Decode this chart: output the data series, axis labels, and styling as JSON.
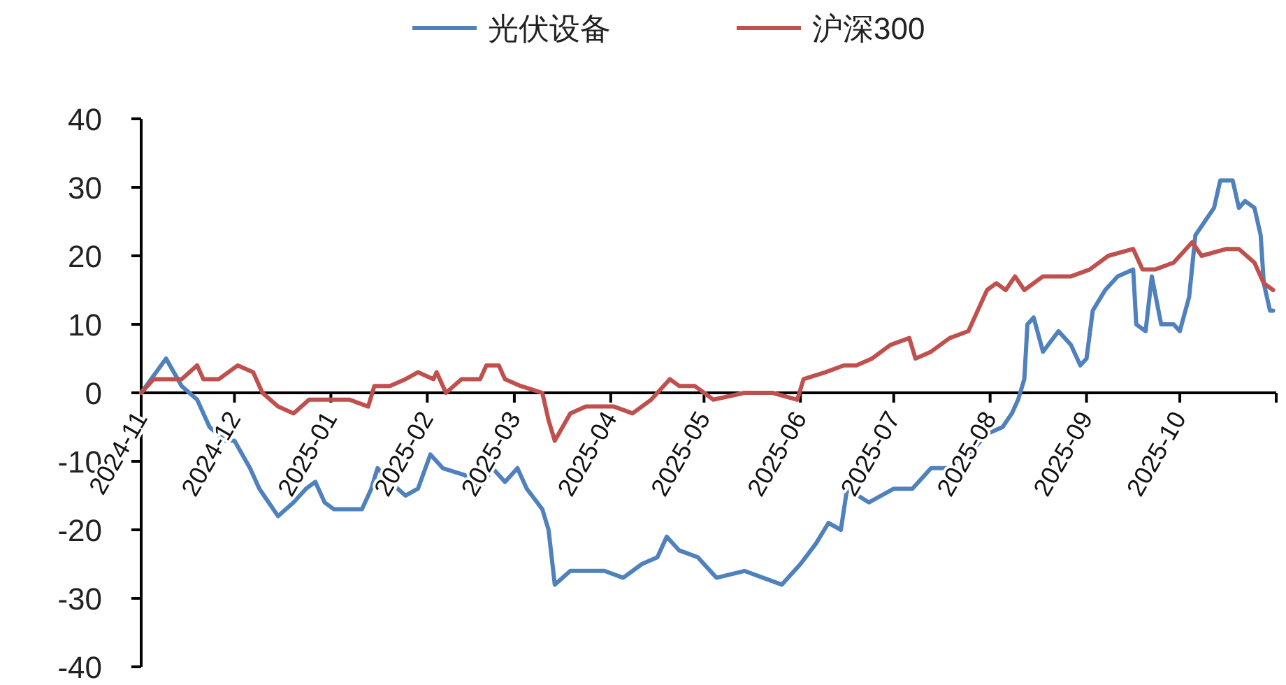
{
  "chart_data": {
    "type": "line",
    "legend": "top",
    "xlim": [
      "2024-11-01",
      "2025-11-01"
    ],
    "ylim": [
      -40,
      40
    ],
    "xticks": [
      "2024-11",
      "2024-12",
      "2025-01",
      "2025-02",
      "2025-03",
      "2025-04",
      "2025-05",
      "2025-06",
      "2025-07",
      "2025-08",
      "2025-09",
      "2025-10",
      {
        "value": "2025-11",
        "label": null
      }
    ],
    "yticks": [
      -40,
      -30,
      -20,
      -10,
      0,
      10,
      20,
      30,
      40
    ],
    "series": [
      {
        "name": "光伏设备",
        "color": "#4f81bd",
        "x": [
          "2024-11-01",
          "2024-11-09",
          "2024-11-14",
          "2024-11-19",
          "2024-11-23",
          "2024-11-28",
          "2024-12-01",
          "2024-12-06",
          "2024-12-09",
          "2024-12-12",
          "2024-12-15",
          "2024-12-20",
          "2024-12-24",
          "2024-12-27",
          "2024-12-30",
          "2025-01-02",
          "2025-01-07",
          "2025-01-11",
          "2025-01-14",
          "2025-01-16",
          "2025-01-20",
          "2025-01-25",
          "2025-01-29",
          "2025-02-02",
          "2025-02-06",
          "2025-02-13",
          "2025-02-18",
          "2025-02-22",
          "2025-02-26",
          "2025-03-02",
          "2025-03-05",
          "2025-03-10",
          "2025-03-12",
          "2025-03-14",
          "2025-03-19",
          "2025-03-23",
          "2025-03-30",
          "2025-04-05",
          "2025-04-11",
          "2025-04-16",
          "2025-04-19",
          "2025-04-23",
          "2025-04-29",
          "2025-05-05",
          "2025-05-14",
          "2025-05-20",
          "2025-05-26",
          "2025-06-01",
          "2025-06-06",
          "2025-06-10",
          "2025-06-14",
          "2025-06-16",
          "2025-06-23",
          "2025-07-01",
          "2025-07-07",
          "2025-07-13",
          "2025-07-19",
          "2025-07-25",
          "2025-07-31",
          "2025-08-05",
          "2025-08-08",
          "2025-08-10",
          "2025-08-12",
          "2025-08-13",
          "2025-08-15",
          "2025-08-18",
          "2025-08-23",
          "2025-08-27",
          "2025-08-30",
          "2025-09-01",
          "2025-09-03",
          "2025-09-07",
          "2025-09-11",
          "2025-09-16",
          "2025-09-17",
          "2025-09-20",
          "2025-09-22",
          "2025-09-25",
          "2025-09-29",
          "2025-10-01",
          "2025-10-04",
          "2025-10-06",
          "2025-10-09",
          "2025-10-12",
          "2025-10-14",
          "2025-10-18",
          "2025-10-20",
          "2025-10-22",
          "2025-10-25",
          "2025-10-27",
          "2025-10-28",
          "2025-10-30",
          "2025-10-31"
        ],
        "values": [
          0,
          5,
          1,
          -1,
          -5,
          -7,
          -7,
          -11,
          -14,
          -16,
          -18,
          -16,
          -14,
          -13,
          -16,
          -17,
          -17,
          -17,
          -14,
          -11,
          -13,
          -15,
          -14,
          -9,
          -11,
          -12,
          -14,
          -11,
          -13,
          -11,
          -14,
          -17,
          -20,
          -28,
          -26,
          -26,
          -26,
          -27,
          -25,
          -24,
          -21,
          -23,
          -24,
          -27,
          -26,
          -27,
          -28,
          -25,
          -22,
          -19,
          -20,
          -14,
          -16,
          -14,
          -14,
          -11,
          -11,
          -9,
          -6,
          -5,
          -3,
          -1,
          2,
          10,
          11,
          6,
          9,
          7,
          4,
          5,
          12,
          15,
          17,
          18,
          10,
          9,
          17,
          10,
          10,
          9,
          14,
          23,
          25,
          27,
          31,
          31,
          27,
          28,
          27,
          23,
          16,
          12,
          12
        ]
      },
      {
        "name": "沪深300",
        "color": "#c0504d",
        "x": [
          "2024-11-01",
          "2024-11-05",
          "2024-11-10",
          "2024-11-14",
          "2024-11-19",
          "2024-11-21",
          "2024-11-26",
          "2024-12-02",
          "2024-12-07",
          "2024-12-10",
          "2024-12-15",
          "2024-12-20",
          "2024-12-25",
          "2024-12-30",
          "2025-01-07",
          "2025-01-13",
          "2025-01-15",
          "2025-01-20",
          "2025-01-25",
          "2025-01-29",
          "2025-02-03",
          "2025-02-04",
          "2025-02-07",
          "2025-02-12",
          "2025-02-18",
          "2025-02-20",
          "2025-02-24",
          "2025-02-26",
          "2025-03-03",
          "2025-03-10",
          "2025-03-12",
          "2025-03-14",
          "2025-03-19",
          "2025-03-24",
          "2025-04-02",
          "2025-04-08",
          "2025-04-14",
          "2025-04-20",
          "2025-04-23",
          "2025-04-28",
          "2025-05-04",
          "2025-05-14",
          "2025-05-23",
          "2025-05-31",
          "2025-06-02",
          "2025-06-09",
          "2025-06-15",
          "2025-06-19",
          "2025-06-24",
          "2025-06-30",
          "2025-07-06",
          "2025-07-08",
          "2025-07-13",
          "2025-07-19",
          "2025-07-25",
          "2025-07-31",
          "2025-08-03",
          "2025-08-06",
          "2025-08-09",
          "2025-08-12",
          "2025-08-18",
          "2025-08-27",
          "2025-09-02",
          "2025-09-08",
          "2025-09-16",
          "2025-09-19",
          "2025-09-23",
          "2025-09-29",
          "2025-10-05",
          "2025-10-08",
          "2025-10-16",
          "2025-10-20",
          "2025-10-25",
          "2025-10-28",
          "2025-10-31"
        ],
        "values": [
          0,
          2,
          2,
          2,
          4,
          2,
          2,
          4,
          3,
          0,
          -2,
          -3,
          -1,
          -1,
          -1,
          -2,
          1,
          1,
          2,
          3,
          2,
          3,
          0,
          2,
          2,
          4,
          4,
          2,
          1,
          0,
          -4,
          -7,
          -3,
          -2,
          -2,
          -3,
          -1,
          2,
          1,
          1,
          -1,
          0,
          0,
          -1,
          2,
          3,
          4,
          4,
          5,
          7,
          8,
          5,
          6,
          8,
          9,
          15,
          16,
          15,
          17,
          15,
          17,
          17,
          18,
          20,
          21,
          18,
          18,
          19,
          22,
          20,
          21,
          21,
          19,
          16,
          15
        ]
      }
    ]
  }
}
